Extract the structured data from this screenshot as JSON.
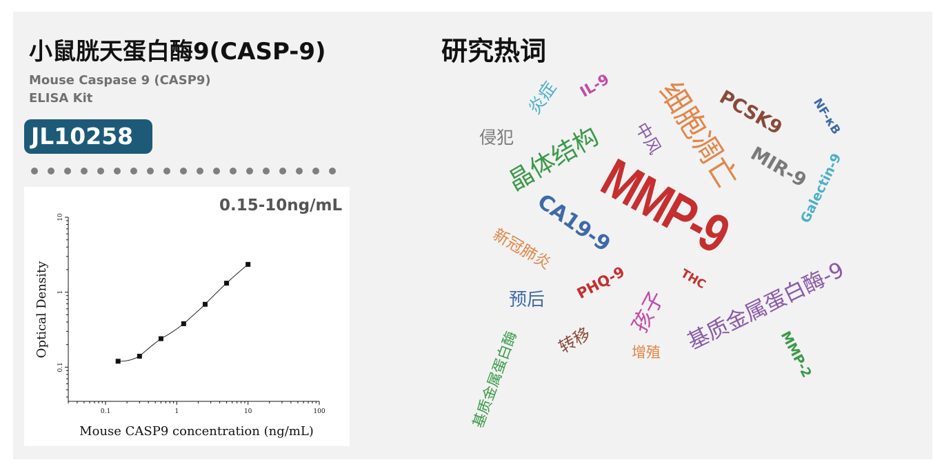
{
  "product": {
    "title_cn": "小鼠胱天蛋白酶9(CASP-9)",
    "subtitle_line1": "Mouse Caspase 9 (CASP9)",
    "subtitle_line2": "ELISA Kit",
    "catalog_no": "JL10258",
    "range": "0.15-10ng/mL"
  },
  "chart_data": {
    "type": "scatter",
    "xlabel": "Mouse CASP9 concentration (ng/mL)",
    "ylabel": "Optical Density",
    "xscale": "log",
    "yscale": "log",
    "xlim": [
      0.03,
      100
    ],
    "ylim": [
      0.035,
      10
    ],
    "xticks": [
      "0.1",
      "1",
      "10",
      "100"
    ],
    "yticks": [
      "0.1",
      "1",
      "10"
    ],
    "grid": false,
    "x": [
      0.15,
      0.3,
      0.6,
      1.25,
      2.5,
      5,
      10
    ],
    "y": [
      0.12,
      0.14,
      0.24,
      0.38,
      0.69,
      1.32,
      2.35
    ],
    "fit_curve": true
  },
  "hot_words": {
    "title": "研究热词",
    "words": [
      {
        "text": "MMP-9",
        "color": "#c62f2f"
      },
      {
        "text": "细胞凋亡",
        "color": "#e0874a"
      },
      {
        "text": "晶体结构",
        "color": "#3a9a48"
      },
      {
        "text": "CA19-9",
        "color": "#3f6aa8"
      },
      {
        "text": "基质金属蛋白酶-9",
        "color": "#8a5aa8"
      },
      {
        "text": "PCSK9",
        "color": "#8a4a3a"
      },
      {
        "text": "MIR-9",
        "color": "#7a7a7a"
      },
      {
        "text": "Galectin-9",
        "color": "#4ab0c8"
      },
      {
        "text": "NF-κB",
        "color": "#3f6aa8"
      },
      {
        "text": "IL-9",
        "color": "#c44aa8"
      },
      {
        "text": "炎症",
        "color": "#4ab0c8"
      },
      {
        "text": "侵犯",
        "color": "#7a7a7a"
      },
      {
        "text": "中风",
        "color": "#8a5aa8"
      },
      {
        "text": "新冠肺炎",
        "color": "#e0874a"
      },
      {
        "text": "PHQ-9",
        "color": "#c62f2f"
      },
      {
        "text": "THC",
        "color": "#c62f2f"
      },
      {
        "text": "孩子",
        "color": "#c44aa8"
      },
      {
        "text": "预后",
        "color": "#3f6aa8"
      },
      {
        "text": "转移",
        "color": "#8a4a3a"
      },
      {
        "text": "增殖",
        "color": "#e0874a"
      },
      {
        "text": "MMP-2",
        "color": "#3a9a48"
      },
      {
        "text": "基质金属蛋白酶",
        "color": "#3a9a48"
      }
    ]
  }
}
